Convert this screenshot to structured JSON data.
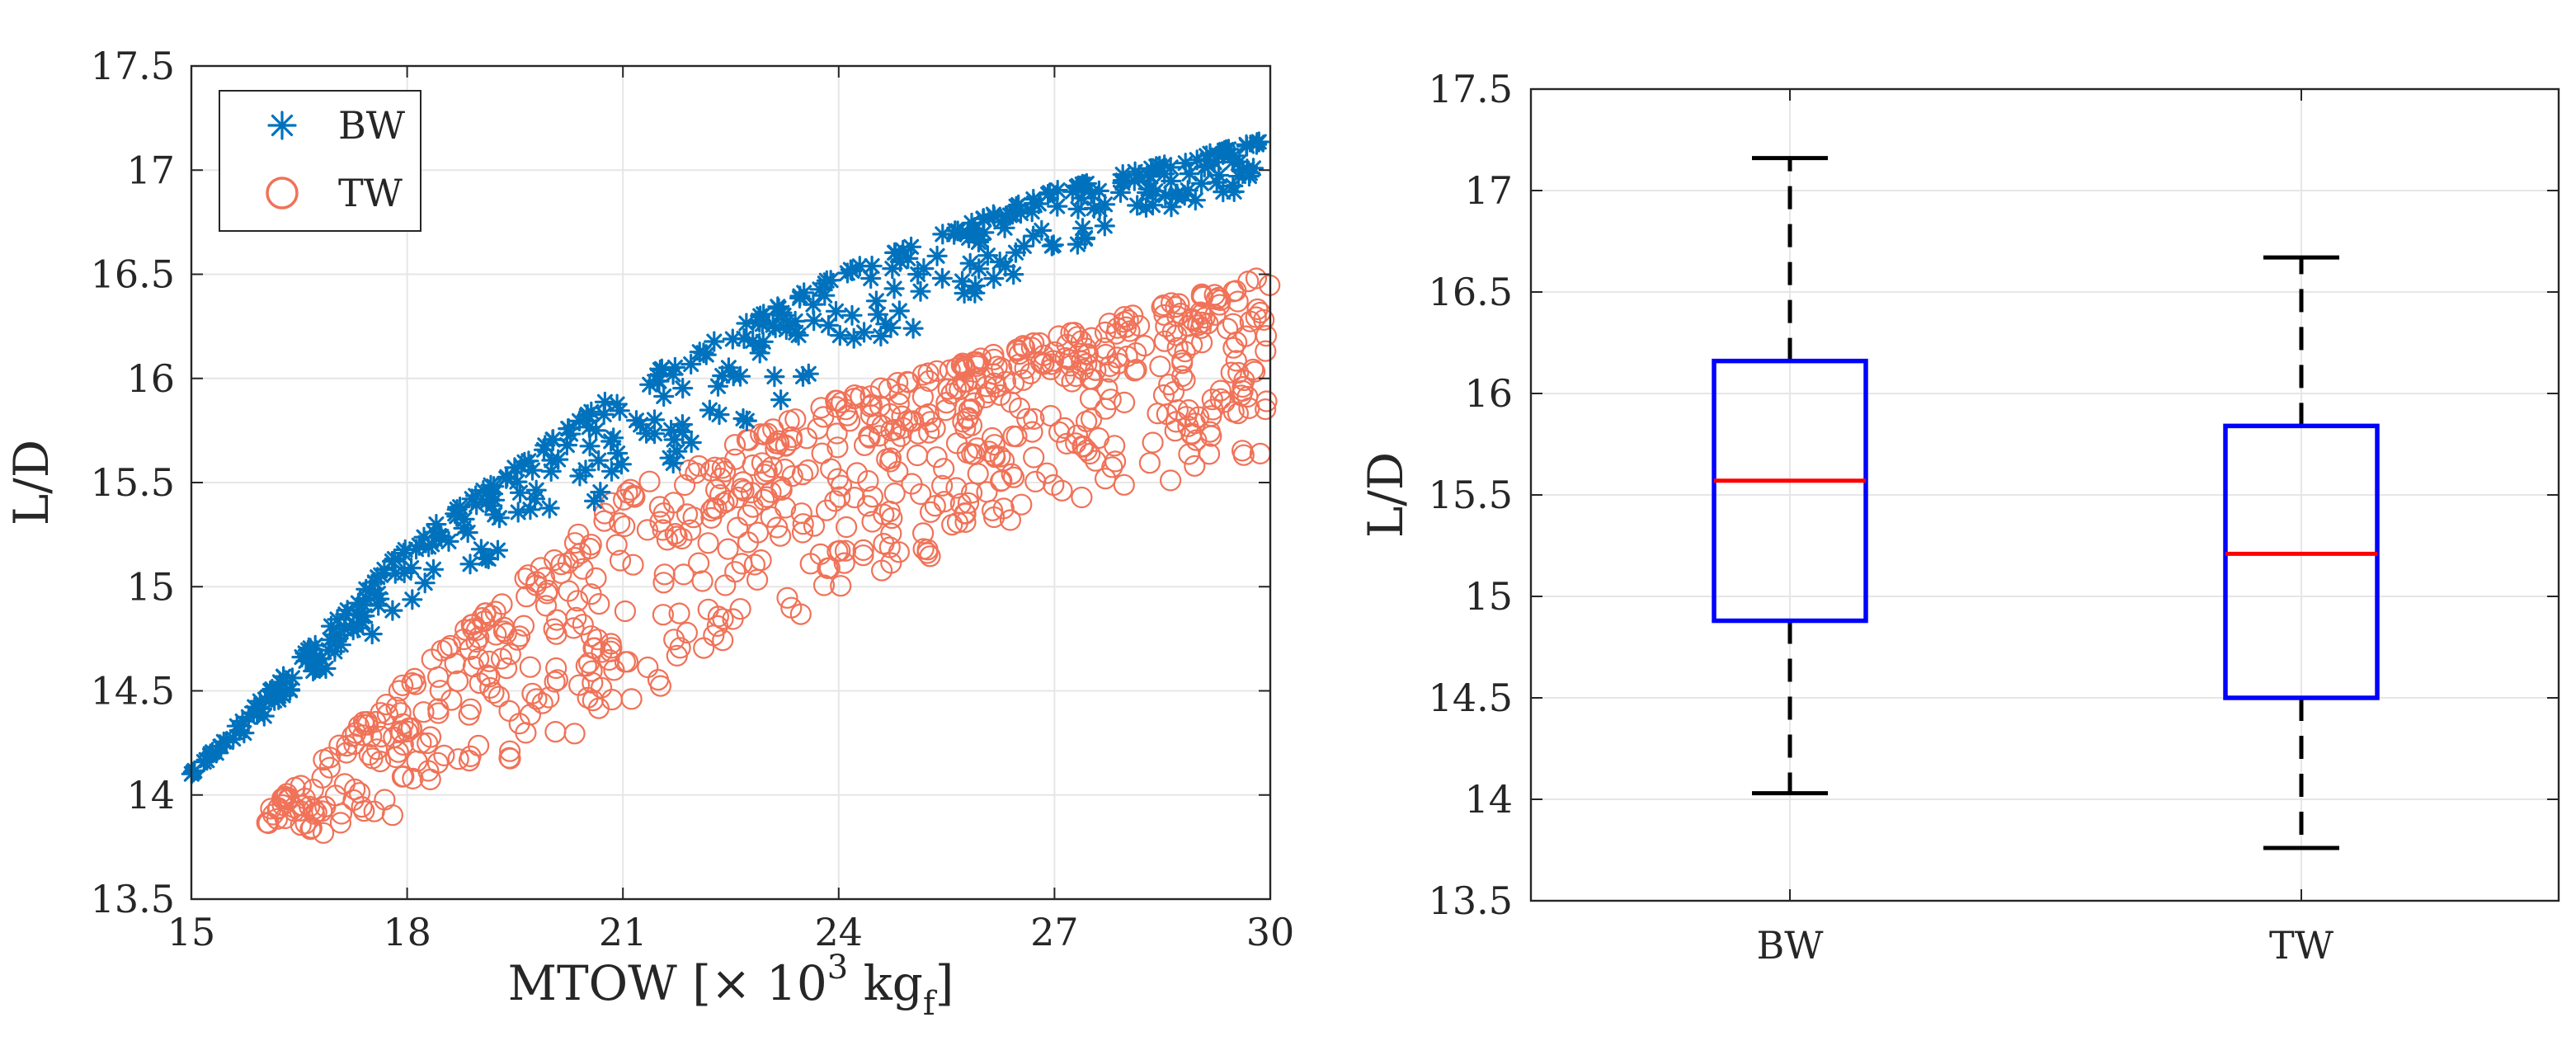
{
  "colors": {
    "bw_series": "#0072BD",
    "tw_series": "#F07258",
    "box_outline": "#0000FF",
    "median_line": "#FF0000",
    "whisker": "#000000"
  },
  "chart_data": [
    {
      "type": "scatter",
      "xlabel": "MTOW [× 10³ kgf]",
      "xlabel_parts": {
        "main": "MTOW [× 10",
        "sup": "3",
        "mid": " kg",
        "sub": "f",
        "end": "]"
      },
      "ylabel": "L/D",
      "xlim": [
        15,
        30
      ],
      "ylim": [
        13.5,
        17.5
      ],
      "xticks": [
        15,
        18,
        21,
        24,
        27,
        30
      ],
      "xtick_labels": [
        "15",
        "18",
        "21",
        "24",
        "27",
        "30"
      ],
      "yticks": [
        13.5,
        14,
        14.5,
        15,
        15.5,
        16,
        16.5,
        17,
        17.5
      ],
      "ytick_labels": [
        "13.5",
        "14",
        "14.5",
        "15",
        "15.5",
        "16",
        "16.5",
        "17",
        "17.5"
      ],
      "grid": true,
      "legend_position": "top-left",
      "series": [
        {
          "name": "BW",
          "marker": "asterisk",
          "trend": {
            "x": [
              15,
              18,
              21,
              24,
              27,
              30
            ],
            "y_upper": [
              14.1,
              15.2,
              15.95,
              16.5,
              16.9,
              17.15
            ],
            "y_lower": [
              14.1,
              14.9,
              15.45,
              16.05,
              16.6,
              16.95
            ]
          },
          "x_range": [
            15,
            30
          ],
          "count": 420
        },
        {
          "name": "TW",
          "marker": "circle",
          "trend": {
            "x": [
              16,
              18,
              21,
              24,
              27,
              30
            ],
            "y_upper": [
              13.9,
              14.55,
              15.45,
              15.9,
              16.2,
              16.5
            ],
            "y_lower": [
              13.75,
              13.9,
              14.4,
              14.95,
              15.4,
              15.6
            ]
          },
          "x_range": [
            16,
            30
          ],
          "count": 750
        }
      ]
    },
    {
      "type": "box",
      "ylabel": "L/D",
      "ylim": [
        13.5,
        17.5
      ],
      "yticks": [
        13.5,
        14,
        14.5,
        15,
        15.5,
        16,
        16.5,
        17,
        17.5
      ],
      "ytick_labels": [
        "13.5",
        "14",
        "14.5",
        "15",
        "15.5",
        "16",
        "16.5",
        "17",
        "17.5"
      ],
      "categories": [
        "BW",
        "TW"
      ],
      "grid": true,
      "boxes": [
        {
          "name": "BW",
          "min": 14.03,
          "q1": 14.88,
          "median": 15.57,
          "q3": 16.16,
          "max": 17.16
        },
        {
          "name": "TW",
          "min": 13.76,
          "q1": 14.5,
          "median": 15.21,
          "q3": 15.84,
          "max": 16.67
        }
      ]
    }
  ]
}
